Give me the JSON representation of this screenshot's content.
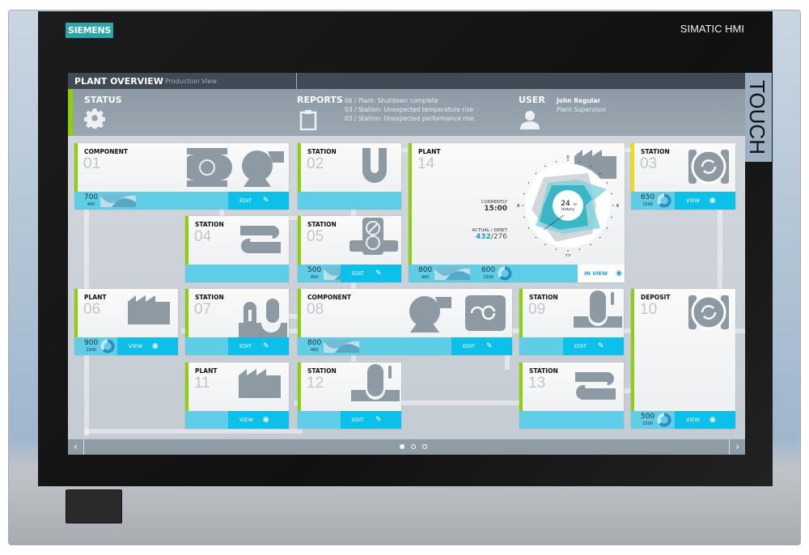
{
  "device": {
    "brand": "SIEMENS",
    "model": "SIMATIC HMI",
    "touch_label": "TOUCH"
  },
  "header": {
    "title": "PLANT OVERVIEW",
    "subtitle": "Production View"
  },
  "status": {
    "label": "STATUS",
    "icon": "gear-icon"
  },
  "reports": {
    "label": "REPORTS",
    "icon": "clipboard-icon",
    "items": [
      "06 / Plant: Shutdown complete",
      "03 / Station: Unexpected temperature rise",
      "03 / Station: Unexpected performance rise"
    ]
  },
  "user": {
    "label": "USER",
    "name": "John Regular",
    "role": "Plant Supervisor",
    "icon": "user-icon"
  },
  "colors": {
    "accent_ok": "#8ccf0a",
    "accent_warn": "#f5dc00",
    "footer": "#5ecde5",
    "button": "#0dc0ea",
    "teal": "#3bb6c4"
  },
  "tiles": [
    {
      "category": "COMPONENT",
      "number": "01",
      "icon": "pump-blower",
      "value": "700",
      "sub": "400",
      "gauge": "wave",
      "button": "EDIT",
      "status": "ok"
    },
    {
      "category": "STATION",
      "number": "02",
      "icon": "pipe-u",
      "status": "ok"
    },
    {
      "category": "PLANT",
      "number": "14",
      "icon": "factory",
      "status": "ok",
      "value": "800",
      "sub": "400",
      "gauge": "wave",
      "value2": "600",
      "sub2": "1500",
      "button": "IN VIEW",
      "chart": {
        "currently_label": "CURRENTLY",
        "currently": "15:00",
        "actual_label": "ACTUAL / DEBIT",
        "actual": "432",
        "debit": "/276",
        "center": "24",
        "center_unit": "hr",
        "center_sub": "History",
        "ticks": [
          "0",
          "6",
          "12",
          "18"
        ]
      }
    },
    {
      "category": "STATION",
      "number": "03",
      "icon": "refresh",
      "value": "650",
      "sub": "1500",
      "gauge": "donut",
      "button": "VIEW",
      "status": "warning"
    },
    {
      "category": "STATION",
      "number": "04",
      "icon": "coil",
      "status": "ok"
    },
    {
      "category": "STATION",
      "number": "05",
      "icon": "valve",
      "value": "500",
      "sub": "400",
      "gauge": "wave",
      "button": "EDIT",
      "status": "ok"
    },
    {
      "category": "PLANT",
      "number": "06",
      "icon": "factory",
      "value": "900",
      "sub": "1500",
      "gauge": "donut",
      "button": "VIEW",
      "status": "ok"
    },
    {
      "category": "STATION",
      "number": "07",
      "icon": "cooler",
      "button": "EDIT",
      "status": "ok"
    },
    {
      "category": "COMPONENT",
      "number": "08",
      "icon": "blower-mixer",
      "value": "800",
      "sub": "400",
      "gauge": "wave",
      "button": "EDIT",
      "status": "ok"
    },
    {
      "category": "STATION",
      "number": "09",
      "icon": "probe",
      "button": "EDIT",
      "status": "ok"
    },
    {
      "category": "DEPOSIT",
      "number": "10",
      "icon": "refresh",
      "value": "500",
      "sub": "1500",
      "gauge": "donut",
      "button": "VIEW",
      "status": "ok"
    },
    {
      "category": "PLANT",
      "number": "11",
      "icon": "factory",
      "button": "VIEW",
      "status": "ok"
    },
    {
      "category": "STATION",
      "number": "12",
      "icon": "probe",
      "button": "EDIT",
      "status": "ok"
    },
    {
      "category": "STATION",
      "number": "13",
      "icon": "coil",
      "status": "ok"
    }
  ],
  "pagination": {
    "pages": 3,
    "current": 1
  }
}
